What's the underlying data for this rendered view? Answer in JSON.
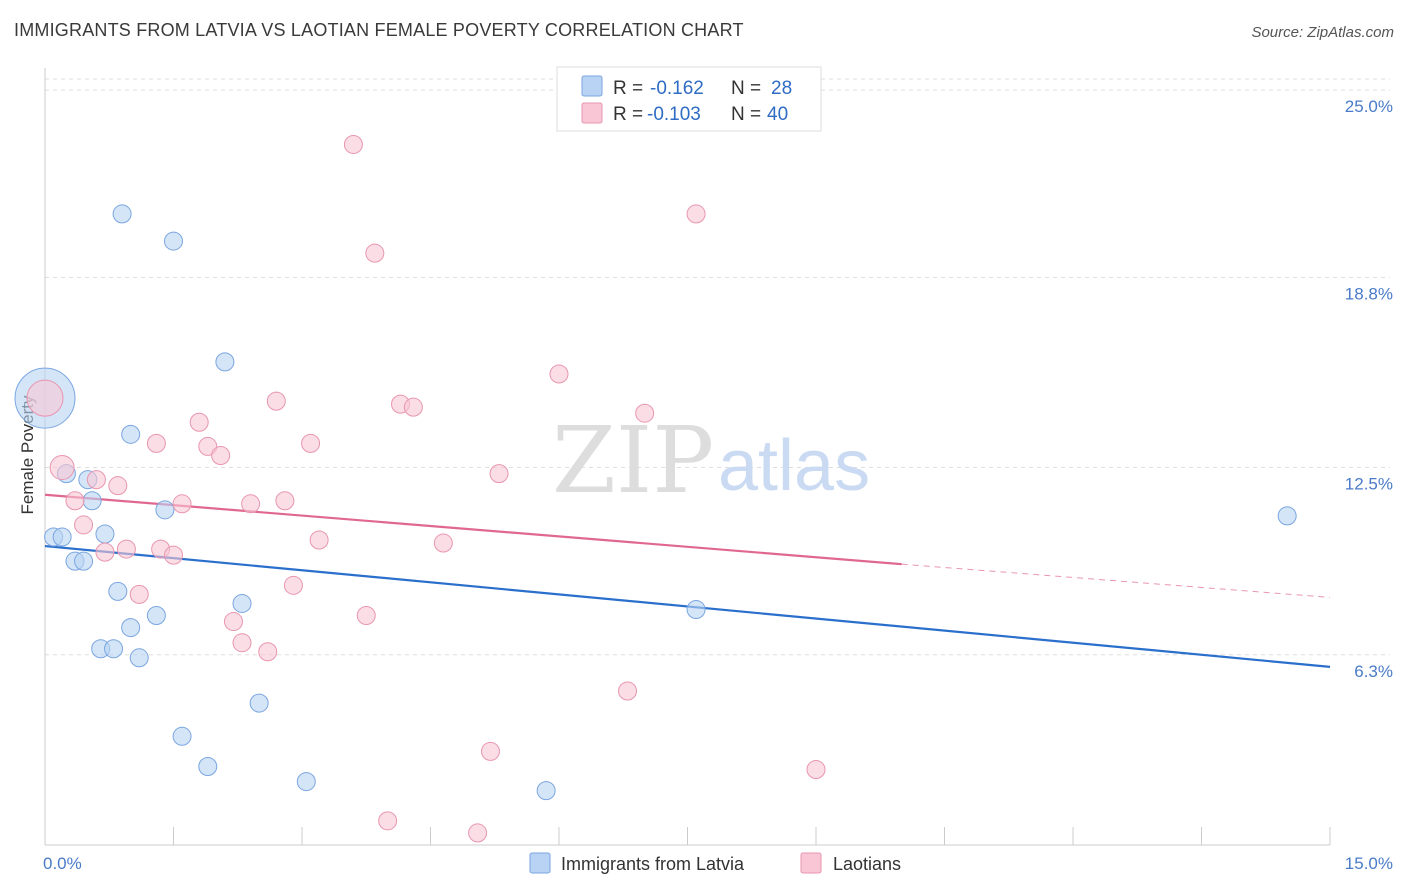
{
  "title": "IMMIGRANTS FROM LATVIA VS LAOTIAN FEMALE POVERTY CORRELATION CHART",
  "source": "Source: ZipAtlas.com",
  "watermark": {
    "zip": "ZIP",
    "atlas": "atlas"
  },
  "colors": {
    "latvia_fill": "#b9d3f4",
    "latvia_stroke": "#7aa6e0",
    "latvia_line": "#2a6fcc",
    "laotian_fill": "#f8c6d4",
    "laotian_stroke": "#e896b0",
    "laotian_line": "#e06890",
    "tick_label": "#4a7bc8",
    "grid": "#dddddd"
  },
  "legend": {
    "rows": [
      {
        "r_label": "R =",
        "r_value": "-0.162",
        "n_label": "N =",
        "n_value": "28"
      },
      {
        "r_label": "R =",
        "r_value": "-0.103",
        "n_label": "N =",
        "n_value": "40"
      }
    ]
  },
  "bottom_legend": [
    "Immigrants from Latvia",
    "Laotians"
  ],
  "chart_data": {
    "type": "scatter",
    "title": "IMMIGRANTS FROM LATVIA VS LAOTIAN FEMALE POVERTY CORRELATION CHART",
    "xlabel": "",
    "ylabel": "Female Poverty",
    "xlim": [
      0,
      15
    ],
    "ylim": [
      0,
      25.6
    ],
    "x_tick_labels": [
      "0.0%",
      "15.0%"
    ],
    "y_ticks": [
      6.3,
      12.5,
      18.8,
      25.0
    ],
    "y_tick_labels": [
      "6.3%",
      "12.5%",
      "18.8%",
      "25.0%"
    ],
    "grid": "horizontal dashed",
    "legend_position": "top-center",
    "series": [
      {
        "name": "Immigrants from Latvia",
        "points": [
          [
            0.0,
            14.8,
            30
          ],
          [
            0.9,
            20.9,
            9
          ],
          [
            1.5,
            20.0,
            9
          ],
          [
            2.1,
            16.0,
            9
          ],
          [
            1.0,
            13.6,
            9
          ],
          [
            0.25,
            12.3,
            9
          ],
          [
            0.5,
            12.1,
            9
          ],
          [
            0.55,
            11.4,
            9
          ],
          [
            1.4,
            11.1,
            9
          ],
          [
            0.1,
            10.2,
            9
          ],
          [
            0.2,
            10.2,
            9
          ],
          [
            0.7,
            10.3,
            9
          ],
          [
            0.35,
            9.4,
            9
          ],
          [
            0.45,
            9.4,
            9
          ],
          [
            0.85,
            8.4,
            9
          ],
          [
            2.3,
            8.0,
            9
          ],
          [
            1.3,
            7.6,
            9
          ],
          [
            1.0,
            7.2,
            9
          ],
          [
            0.65,
            6.5,
            9
          ],
          [
            0.8,
            6.5,
            9
          ],
          [
            1.1,
            6.2,
            9
          ],
          [
            2.5,
            4.7,
            9
          ],
          [
            1.6,
            3.6,
            9
          ],
          [
            1.9,
            2.6,
            9
          ],
          [
            3.05,
            2.1,
            9
          ],
          [
            5.85,
            1.8,
            9
          ],
          [
            7.6,
            7.8,
            9
          ],
          [
            14.5,
            10.9,
            9
          ]
        ],
        "trend": {
          "x": [
            0.0,
            15.0
          ],
          "y": [
            9.9,
            5.9
          ]
        }
      },
      {
        "name": "Laotians",
        "points": [
          [
            0.0,
            14.8,
            18
          ],
          [
            0.2,
            12.5,
            12
          ],
          [
            3.6,
            23.2,
            9
          ],
          [
            7.6,
            20.9,
            9
          ],
          [
            3.85,
            19.6,
            9
          ],
          [
            6.0,
            15.6,
            9
          ],
          [
            2.7,
            14.7,
            9
          ],
          [
            4.15,
            14.6,
            9
          ],
          [
            4.3,
            14.5,
            9
          ],
          [
            7.0,
            14.3,
            9
          ],
          [
            1.8,
            14.0,
            9
          ],
          [
            1.3,
            13.3,
            9
          ],
          [
            3.1,
            13.3,
            9
          ],
          [
            1.9,
            13.2,
            9
          ],
          [
            2.05,
            12.9,
            9
          ],
          [
            0.6,
            12.1,
            9
          ],
          [
            5.3,
            12.3,
            9
          ],
          [
            0.85,
            11.9,
            9
          ],
          [
            0.35,
            11.4,
            9
          ],
          [
            2.4,
            11.3,
            9
          ],
          [
            2.8,
            11.4,
            9
          ],
          [
            1.6,
            11.3,
            9
          ],
          [
            0.45,
            10.6,
            9
          ],
          [
            3.2,
            10.1,
            9
          ],
          [
            4.65,
            10.0,
            9
          ],
          [
            0.95,
            9.8,
            9
          ],
          [
            1.35,
            9.8,
            9
          ],
          [
            0.7,
            9.7,
            9
          ],
          [
            1.5,
            9.6,
            9
          ],
          [
            2.9,
            8.6,
            9
          ],
          [
            1.1,
            8.3,
            9
          ],
          [
            3.75,
            7.6,
            9
          ],
          [
            2.2,
            7.4,
            9
          ],
          [
            2.3,
            6.7,
            9
          ],
          [
            2.6,
            6.4,
            9
          ],
          [
            6.8,
            5.1,
            9
          ],
          [
            5.2,
            3.1,
            9
          ],
          [
            9.0,
            2.5,
            9
          ],
          [
            4.0,
            0.8,
            9
          ],
          [
            5.05,
            0.4,
            9
          ]
        ],
        "trend": {
          "x": [
            0.0,
            10.0
          ],
          "y": [
            11.6,
            9.3
          ]
        },
        "trend_dashed": {
          "x": [
            10.0,
            15.0
          ],
          "y": [
            9.3,
            8.2
          ]
        }
      }
    ]
  }
}
